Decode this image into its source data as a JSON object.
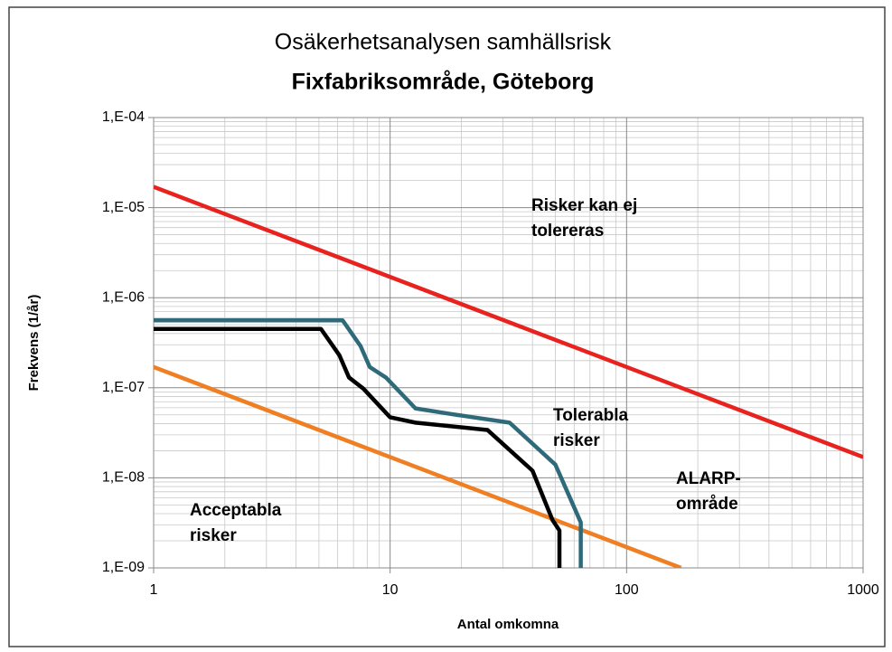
{
  "chart_data": {
    "type": "line",
    "title": [
      "Osäkerhetsanalysen samhällsrisk",
      "Fixfabriksområde, Göteborg"
    ],
    "xlabel": "Antal omkomna",
    "ylabel": "Frekvens (1/år)",
    "xscale": "log",
    "yscale": "log",
    "grid": true,
    "xlim": [
      1,
      1000
    ],
    "ylim": [
      1e-09,
      0.0001
    ],
    "xticks": [
      1,
      10,
      100,
      1000
    ],
    "yticks": [
      {
        "value": 1e-09,
        "label": "1,E-09"
      },
      {
        "value": 1e-08,
        "label": "1,E-08"
      },
      {
        "value": 1e-07,
        "label": "1,E-07"
      },
      {
        "value": 1e-06,
        "label": "1,E-06"
      },
      {
        "value": 1e-05,
        "label": "1,E-05"
      },
      {
        "value": 0.0001,
        "label": "1,E-04"
      }
    ],
    "series": [
      {
        "color": "#e8231f",
        "x": [
          1,
          1000
        ],
        "values": [
          1.7e-05,
          1.7e-08
        ]
      },
      {
        "color": "#ef7f22",
        "x": [
          1,
          170
        ],
        "values": [
          1.7e-07,
          1e-09
        ]
      },
      {
        "color": "#2f6a7a",
        "x": [
          1,
          6.3,
          7.5,
          8.2,
          9.6,
          12.8,
          18.2,
          32,
          50,
          64,
          64
        ],
        "values": [
          5.6e-07,
          5.6e-07,
          2.9e-07,
          1.7e-07,
          1.3e-07,
          5.9e-08,
          5.1e-08,
          4.1e-08,
          1.4e-08,
          3.2e-09,
          1e-09
        ]
      },
      {
        "color": "#000000",
        "x": [
          1,
          5.1,
          6.1,
          6.7,
          7.7,
          10,
          12.8,
          25.8,
          40,
          48.6,
          52,
          52
        ],
        "values": [
          4.5e-07,
          4.5e-07,
          2.3e-07,
          1.3e-07,
          9.8e-08,
          4.7e-08,
          4.1e-08,
          3.4e-08,
          1.2e-08,
          3.4e-09,
          2.6e-09,
          1e-09
        ]
      }
    ],
    "annotations": [
      [
        "Risker kan ej",
        "tolereras"
      ],
      [
        "Tolerabla",
        "risker"
      ],
      [
        "ALARP-",
        "område"
      ],
      [
        "Acceptabla",
        "risker"
      ]
    ]
  }
}
